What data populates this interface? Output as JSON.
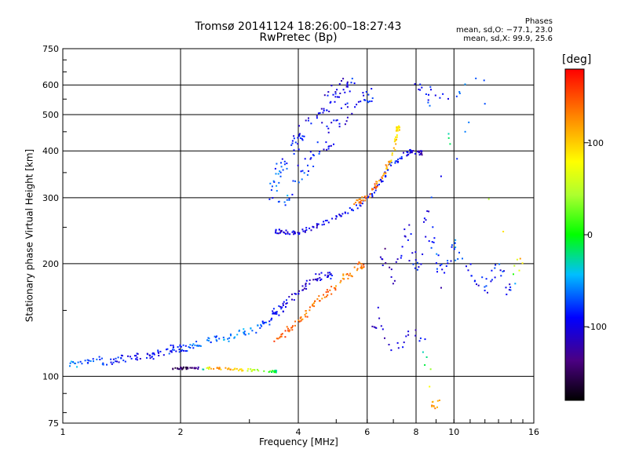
{
  "chart_data": {
    "type": "scatter",
    "title": "Tromsø 20141124 18:26:00–18:27:43",
    "subtitle": "RwPretec (Bp)",
    "xlabel": "Frequency [MHz]",
    "ylabel": "Stationary phase Virtual Height [km]",
    "x_scale": "log",
    "y_scale": "log",
    "xlim": [
      1,
      16
    ],
    "ylim": [
      75,
      750
    ],
    "x_ticks": [
      1,
      2,
      4,
      6,
      8,
      10,
      16
    ],
    "y_ticks": [
      75,
      100,
      200,
      300,
      400,
      500,
      600,
      750
    ],
    "grid": true,
    "colorbar": {
      "label": "[deg]",
      "range": [
        -180,
        180
      ],
      "ticks": [
        100,
        0,
        -100
      ]
    },
    "stats": {
      "heading": "Phases",
      "line_o": "mean, sd,O: −77.1, 23.0",
      "line_x": "mean, sd,X:  99.9, 25.6"
    },
    "traces": [
      {
        "desc": "lower O-mode trace",
        "points": [
          [
            1.04,
            107,
            -60
          ],
          [
            1.1,
            108,
            -55
          ],
          [
            1.2,
            110,
            -75
          ],
          [
            1.3,
            110,
            -85
          ],
          [
            1.4,
            111,
            -95
          ],
          [
            1.5,
            112,
            -100
          ],
          [
            1.6,
            113,
            -100
          ],
          [
            1.7,
            114,
            -95
          ],
          [
            1.8,
            116,
            -90
          ],
          [
            1.9,
            118,
            -85
          ],
          [
            2.0,
            119,
            -80
          ],
          [
            2.1,
            120,
            -75
          ],
          [
            2.2,
            122,
            -70
          ],
          [
            2.4,
            124,
            -65
          ],
          [
            2.6,
            126,
            -60
          ],
          [
            2.8,
            129,
            -60
          ],
          [
            3.0,
            132,
            -65
          ],
          [
            3.2,
            136,
            -70
          ],
          [
            3.4,
            142,
            -80
          ],
          [
            3.5,
            147,
            -90
          ],
          [
            3.6,
            152,
            -95
          ],
          [
            3.8,
            160,
            -100
          ],
          [
            4.0,
            168,
            -105
          ],
          [
            4.2,
            176,
            -110
          ],
          [
            4.5,
            184,
            -105
          ],
          [
            4.8,
            185,
            -100
          ]
        ],
        "spread": 0.035
      },
      {
        "desc": "lower X-mode trace",
        "points": [
          [
            3.5,
            125,
            140
          ],
          [
            3.7,
            130,
            145
          ],
          [
            3.9,
            137,
            140
          ],
          [
            4.1,
            144,
            135
          ],
          [
            4.3,
            152,
            140
          ],
          [
            4.5,
            160,
            135
          ],
          [
            4.8,
            168,
            140
          ],
          [
            5.1,
            178,
            130
          ],
          [
            5.4,
            188,
            135
          ],
          [
            5.8,
            198,
            140
          ]
        ],
        "spread": 0.03
      },
      {
        "desc": "sporadic near 105 km",
        "points": [
          [
            1.9,
            105,
            -150
          ],
          [
            2.0,
            105,
            -145
          ],
          [
            2.1,
            105,
            -150
          ],
          [
            2.2,
            105,
            -140
          ],
          [
            2.4,
            105,
            120
          ],
          [
            2.6,
            105,
            115
          ],
          [
            2.8,
            104,
            110
          ],
          [
            3.0,
            104,
            60
          ],
          [
            3.3,
            103,
            40
          ],
          [
            3.5,
            103,
            -20
          ]
        ],
        "spread": 0.01
      },
      {
        "desc": "F-region O-mode trace",
        "points": [
          [
            3.5,
            245,
            -100
          ],
          [
            3.6,
            243,
            -105
          ],
          [
            3.8,
            242,
            -100
          ],
          [
            4.0,
            243,
            -100
          ],
          [
            4.3,
            248,
            -105
          ],
          [
            4.6,
            255,
            -100
          ],
          [
            5.0,
            265,
            -95
          ],
          [
            5.4,
            278,
            -90
          ],
          [
            5.8,
            290,
            -95
          ],
          [
            6.2,
            310,
            -90
          ],
          [
            6.6,
            340,
            -85
          ],
          [
            7.0,
            370,
            -80
          ],
          [
            7.4,
            390,
            -100
          ],
          [
            7.8,
            400,
            -110
          ],
          [
            8.2,
            395,
            -120
          ]
        ],
        "spread": 0.02
      },
      {
        "desc": "F-region X-mode trace",
        "points": [
          [
            5.5,
            290,
            130
          ],
          [
            5.8,
            295,
            135
          ],
          [
            6.0,
            302,
            140
          ],
          [
            6.3,
            320,
            140
          ],
          [
            6.6,
            345,
            120
          ],
          [
            6.8,
            370,
            110
          ],
          [
            7.0,
            400,
            100
          ],
          [
            7.1,
            430,
            100
          ],
          [
            7.2,
            460,
            95
          ]
        ],
        "spread": 0.02
      },
      {
        "desc": "spread F cloud",
        "points": [
          [
            3.4,
            300,
            -80
          ],
          [
            3.5,
            330,
            -70
          ],
          [
            3.6,
            360,
            -75
          ],
          [
            3.8,
            400,
            -85
          ],
          [
            4.0,
            430,
            -90
          ],
          [
            4.2,
            460,
            -95
          ],
          [
            4.5,
            500,
            -100
          ],
          [
            4.8,
            540,
            -105
          ],
          [
            5.0,
            570,
            -95
          ],
          [
            5.3,
            600,
            -100
          ],
          [
            5.6,
            620,
            -90
          ],
          [
            3.6,
            280,
            -60
          ],
          [
            3.9,
            320,
            -75
          ],
          [
            4.3,
            380,
            -90
          ],
          [
            4.6,
            420,
            -95
          ],
          [
            5.0,
            460,
            -100
          ],
          [
            5.5,
            520,
            -95
          ],
          [
            6.0,
            560,
            -90
          ]
        ],
        "spread": 0.07
      },
      {
        "desc": "scattered echoes",
        "points": [
          [
            6.5,
            220,
            -120
          ],
          [
            7.0,
            180,
            -110
          ],
          [
            7.5,
            250,
            -100
          ],
          [
            8.0,
            190,
            -90
          ],
          [
            8.5,
            280,
            -110
          ],
          [
            9.0,
            210,
            -70
          ],
          [
            9.5,
            170,
            -120
          ],
          [
            10.0,
            230,
            -60
          ],
          [
            11.0,
            190,
            -100
          ],
          [
            12.0,
            170,
            -90
          ],
          [
            13.0,
            200,
            -80
          ],
          [
            14.0,
            165,
            -110
          ],
          [
            15.0,
            210,
            120
          ],
          [
            8.0,
            600,
            -100
          ],
          [
            9.0,
            560,
            -90
          ],
          [
            12.5,
            620,
            -60
          ],
          [
            6.2,
            140,
            -120
          ],
          [
            7.0,
            120,
            -100
          ],
          [
            8.2,
            135,
            -110
          ],
          [
            9.0,
            85,
            120
          ]
        ],
        "spread": 0.05
      }
    ]
  }
}
